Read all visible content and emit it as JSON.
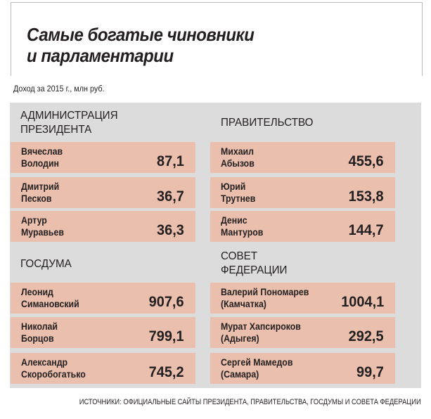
{
  "title": {
    "line1": "Самые богатые чиновники",
    "line2": "и парламентарии"
  },
  "subtitle": "Доход за 2015 г., млн руб.",
  "source": "ИСТОЧНИКИ: ОФИЦИАЛЬНЫЕ САЙТЫ ПРЕЗИДЕНТА, ПРАВИТЕЛЬСТВА, ГОСДУМЫ И СОВЕТА ФЕДЕРАЦИИ",
  "colors": {
    "panel": "#dcdcdc",
    "card": "#eabfad",
    "text": "#231f20"
  },
  "chart_data": {
    "type": "table",
    "unit": "млн руб.",
    "groups": [
      {
        "label_lines": [
          "АДМИНИСТРАЦИЯ",
          "ПРЕЗИДЕНТА"
        ],
        "items": [
          {
            "name_lines": [
              "Вячеслав",
              "Володин"
            ],
            "value": "87,1"
          },
          {
            "name_lines": [
              "Дмитрий",
              "Песков"
            ],
            "value": "36,7"
          },
          {
            "name_lines": [
              "Артур",
              "Муравьев"
            ],
            "value": "36,3"
          }
        ]
      },
      {
        "label_lines": [
          "ПРАВИТЕЛЬСТВО"
        ],
        "items": [
          {
            "name_lines": [
              "Михаил",
              "Абызов"
            ],
            "value": "455,6"
          },
          {
            "name_lines": [
              "Юрий",
              "Трутнев"
            ],
            "value": "153,8"
          },
          {
            "name_lines": [
              "Денис",
              "Мантуров"
            ],
            "value": "144,7"
          }
        ]
      },
      {
        "label_lines": [
          "ГОСДУМА"
        ],
        "items": [
          {
            "name_lines": [
              "Леонид",
              "Симановский"
            ],
            "value": "907,6"
          },
          {
            "name_lines": [
              "Николай",
              "Борцов"
            ],
            "value": "799,1"
          },
          {
            "name_lines": [
              "Александр",
              "Скоробогатько"
            ],
            "value": "745,2"
          }
        ]
      },
      {
        "label_lines": [
          "СОВЕТ",
          "ФЕДЕРАЦИИ"
        ],
        "items": [
          {
            "name_lines": [
              "Валерий Пономарев",
              "(Камчатка)"
            ],
            "value": "1004,1"
          },
          {
            "name_lines": [
              "Мурат Хапсироков",
              "(Адыгея)"
            ],
            "value": "292,5"
          },
          {
            "name_lines": [
              "Сергей Мамедов",
              "(Самара)"
            ],
            "value": "99,7"
          }
        ]
      }
    ]
  }
}
